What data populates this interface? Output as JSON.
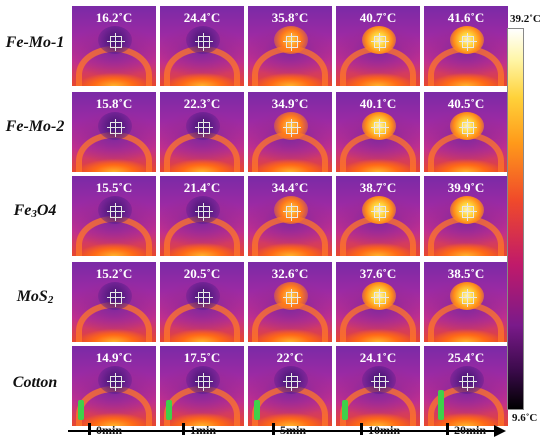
{
  "rows": [
    {
      "label_main": "Fe-Mo-1",
      "sub": "",
      "after": "",
      "temps": [
        "16.2˚C",
        "24.4˚C",
        "35.8˚C",
        "40.7˚C",
        "41.6˚C"
      ]
    },
    {
      "label_main": "Fe-Mo-2",
      "sub": "",
      "after": "",
      "temps": [
        "15.8˚C",
        "22.3˚C",
        "34.9˚C",
        "40.1˚C",
        "40.5˚C"
      ]
    },
    {
      "label_main": "Fe",
      "sub": "3",
      "after": "O4",
      "temps": [
        "15.5˚C",
        "21.4˚C",
        "34.4˚C",
        "38.7˚C",
        "39.9˚C"
      ]
    },
    {
      "label_main": "MoS",
      "sub": "2",
      "after": "",
      "temps": [
        "15.2˚C",
        "20.5˚C",
        "32.6˚C",
        "37.6˚C",
        "38.5˚C"
      ]
    },
    {
      "label_main": "Cotton",
      "sub": "",
      "after": "",
      "temps": [
        "14.9˚C",
        "17.5˚C",
        "22˚C",
        "24.1˚C",
        "25.4˚C"
      ]
    }
  ],
  "colorbar": {
    "max": "39.2˚C",
    "min": "9.6˚C"
  },
  "timeline": [
    "0min",
    "1min",
    "5min",
    "10min",
    "20min"
  ]
}
